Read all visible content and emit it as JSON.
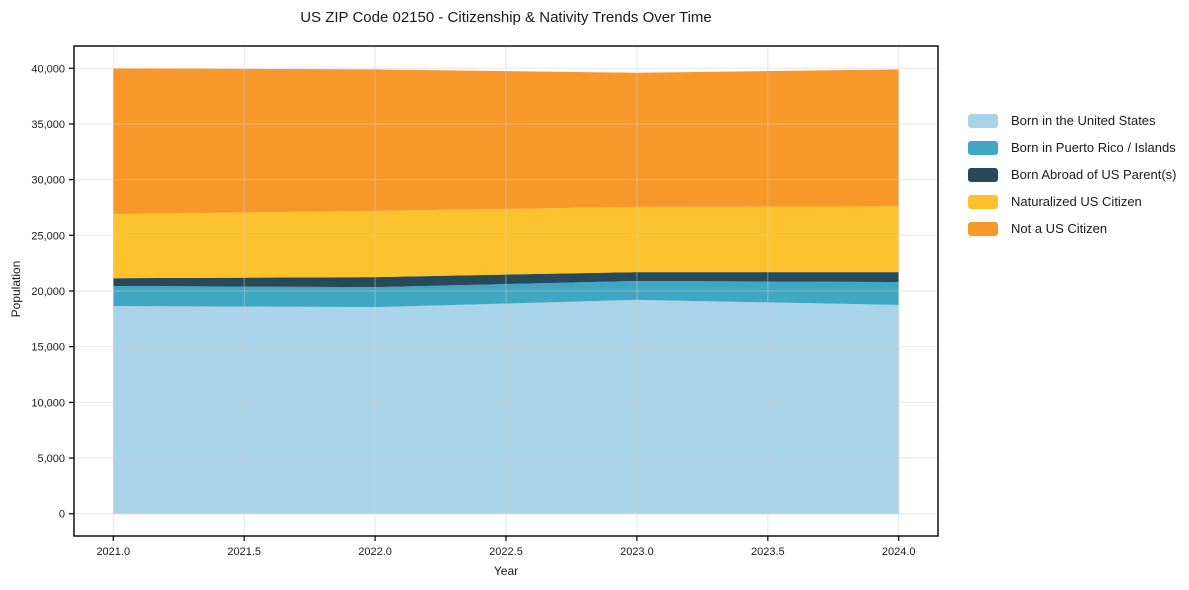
{
  "chart_data": {
    "type": "area",
    "stacked": true,
    "title": "US ZIP Code 02150 - Citizenship & Nativity Trends Over Time",
    "xlabel": "Year",
    "ylabel": "Population",
    "x": [
      2021,
      2022,
      2023,
      2024
    ],
    "series": [
      {
        "name": "Born in the United States",
        "color": "#A8D3E8",
        "values": [
          18650,
          18550,
          19200,
          18750
        ]
      },
      {
        "name": "Born in Puerto Rico / Islands",
        "color": "#3FA7C4",
        "values": [
          1800,
          1800,
          1700,
          2050
        ]
      },
      {
        "name": "Born Abroad of US Parent(s)",
        "color": "#26495C",
        "values": [
          700,
          900,
          800,
          900
        ]
      },
      {
        "name": "Naturalized US Citizen",
        "color": "#FDC32E",
        "values": [
          5750,
          5950,
          5850,
          5900
        ]
      },
      {
        "name": "Not a US Citizen",
        "color": "#F8982B",
        "values": [
          13100,
          12700,
          12050,
          12300
        ]
      }
    ],
    "totals": [
      40000,
      39900,
      39600,
      39900
    ],
    "xticks": [
      2021.0,
      2021.5,
      2022.0,
      2022.5,
      2023.0,
      2023.5,
      2024.0
    ],
    "xtick_labels": [
      "2021.0",
      "2021.5",
      "2022.0",
      "2022.5",
      "2023.0",
      "2023.5",
      "2024.0"
    ],
    "yticks": [
      0,
      5000,
      10000,
      15000,
      20000,
      25000,
      30000,
      35000,
      40000
    ],
    "ytick_labels": [
      "0",
      "5,000",
      "10,000",
      "15,000",
      "20,000",
      "25,000",
      "30,000",
      "35,000",
      "40,000"
    ],
    "xlim": [
      2020.85,
      2024.15
    ],
    "ylim": [
      -2000,
      42000
    ],
    "grid": true,
    "legend_position": "right of plot"
  },
  "colors": {
    "background": "#ffffff",
    "axis_line": "#000000",
    "grid_line": "#cfcfcf",
    "text": "#1a1a1a"
  }
}
